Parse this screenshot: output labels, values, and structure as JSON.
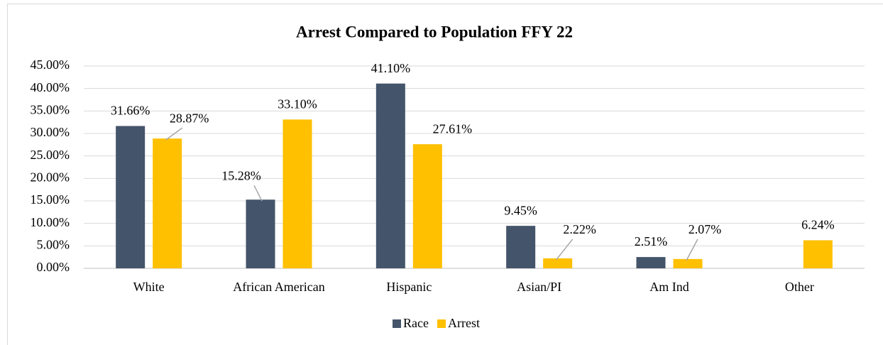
{
  "chart_data": {
    "type": "bar",
    "title": "Arrest Compared to Population FFY 22",
    "categories": [
      "White",
      "African American",
      "Hispanic",
      "Asian/PI",
      "Am Ind",
      "Other"
    ],
    "series": [
      {
        "name": "Race",
        "color": "#44546a",
        "values": [
          31.66,
          15.28,
          41.1,
          9.45,
          2.51,
          null
        ],
        "value_labels": [
          "31.66%",
          "15.28%",
          "41.10%",
          "9.45%",
          "2.51%",
          null
        ]
      },
      {
        "name": "Arrest",
        "color": "#ffc000",
        "values": [
          28.87,
          33.1,
          27.61,
          2.22,
          2.07,
          6.24
        ],
        "value_labels": [
          "28.87%",
          "33.10%",
          "27.61%",
          "2.22%",
          "2.07%",
          "6.24%"
        ]
      }
    ],
    "ylim": [
      0,
      45
    ],
    "yticks": [
      {
        "value": 0,
        "label": "0.00%"
      },
      {
        "value": 5,
        "label": "5.00%"
      },
      {
        "value": 10,
        "label": "10.00%"
      },
      {
        "value": 15,
        "label": "15.00%"
      },
      {
        "value": 20,
        "label": "20.00%"
      },
      {
        "value": 25,
        "label": "25.00%"
      },
      {
        "value": 30,
        "label": "30.00%"
      },
      {
        "value": 35,
        "label": "35.00%"
      },
      {
        "value": 40,
        "label": "40.00%"
      },
      {
        "value": 45,
        "label": "45.00%"
      }
    ],
    "grid": true,
    "legend": "bottom"
  }
}
